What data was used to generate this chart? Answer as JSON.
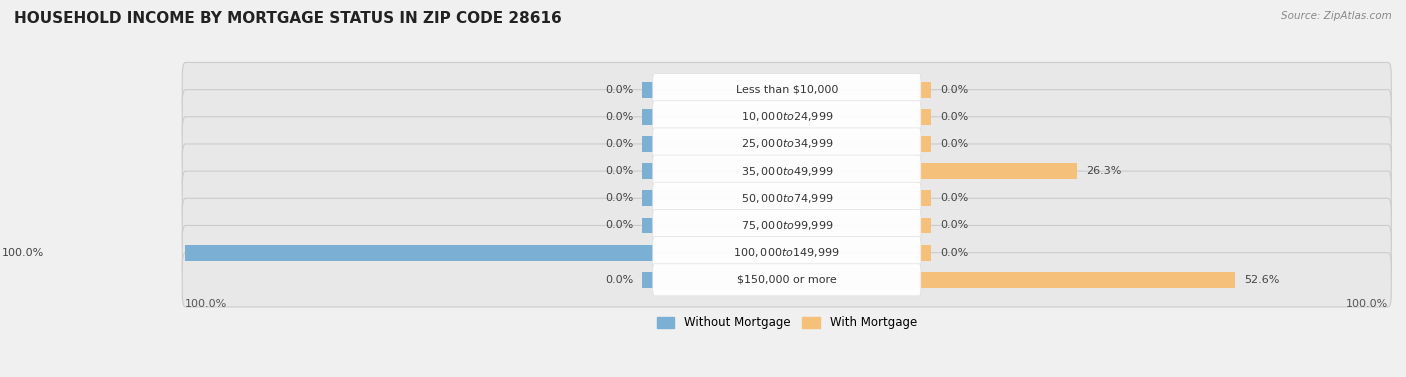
{
  "title": "HOUSEHOLD INCOME BY MORTGAGE STATUS IN ZIP CODE 28616",
  "source": "Source: ZipAtlas.com",
  "categories": [
    "Less than $10,000",
    "$10,000 to $24,999",
    "$25,000 to $34,999",
    "$35,000 to $49,999",
    "$50,000 to $74,999",
    "$75,000 to $99,999",
    "$100,000 to $149,999",
    "$150,000 or more"
  ],
  "without_mortgage": [
    0.0,
    0.0,
    0.0,
    0.0,
    0.0,
    0.0,
    100.0,
    0.0
  ],
  "with_mortgage": [
    0.0,
    0.0,
    0.0,
    26.3,
    0.0,
    0.0,
    0.0,
    52.6
  ],
  "without_mortgage_color": "#7bafd4",
  "with_mortgage_color": "#f4c07a",
  "background_color": "#f0f0f0",
  "row_bg_color": "#e8e8e8",
  "title_fontsize": 11,
  "label_fontsize": 8,
  "axis_label_fontsize": 8,
  "x_axis_left_label": "100.0%",
  "x_axis_right_label": "100.0%"
}
